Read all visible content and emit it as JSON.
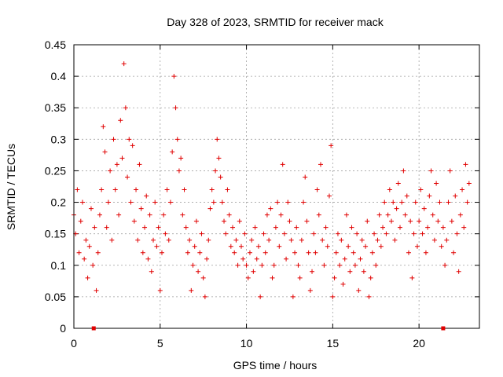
{
  "chart_data": {
    "type": "scatter",
    "title": "Day 328 of 2023, SRMTID for receiver mack",
    "xlabel": "GPS time / hours",
    "ylabel": "SRMTID / TECUs",
    "xlim": [
      0,
      23.5
    ],
    "ylim": [
      0,
      0.45
    ],
    "xticks": [
      0,
      5,
      10,
      15,
      20
    ],
    "xtick_labels": [
      "0",
      "5",
      "10",
      "15",
      "20"
    ],
    "yticks": [
      0,
      0.05,
      0.1,
      0.15,
      0.2,
      0.25,
      0.3,
      0.35,
      0.4,
      0.45
    ],
    "ytick_labels": [
      "0",
      "0.05",
      "0.1",
      "0.15",
      "0.2",
      "0.25",
      "0.3",
      "0.35",
      "0.4",
      "0.45"
    ],
    "grid": true,
    "series_color": "#e00000",
    "series": [
      {
        "name": "SRMTID",
        "marker": "plus",
        "points": [
          [
            0.0,
            0.18
          ],
          [
            0.1,
            0.15
          ],
          [
            0.2,
            0.22
          ],
          [
            0.3,
            0.12
          ],
          [
            0.4,
            0.17
          ],
          [
            0.5,
            0.2
          ],
          [
            0.6,
            0.11
          ],
          [
            0.7,
            0.14
          ],
          [
            0.8,
            0.08
          ],
          [
            0.9,
            0.13
          ],
          [
            1.0,
            0.19
          ],
          [
            1.1,
            0.1
          ],
          [
            1.2,
            0.16
          ],
          [
            1.3,
            0.06
          ],
          [
            1.4,
            0.12
          ],
          [
            1.5,
            0.18
          ],
          [
            1.6,
            0.22
          ],
          [
            1.7,
            0.32
          ],
          [
            1.8,
            0.28
          ],
          [
            1.9,
            0.16
          ],
          [
            2.0,
            0.2
          ],
          [
            2.1,
            0.25
          ],
          [
            2.2,
            0.14
          ],
          [
            2.3,
            0.3
          ],
          [
            2.4,
            0.22
          ],
          [
            2.5,
            0.26
          ],
          [
            2.6,
            0.18
          ],
          [
            2.7,
            0.33
          ],
          [
            2.8,
            0.27
          ],
          [
            2.9,
            0.42
          ],
          [
            3.0,
            0.35
          ],
          [
            3.1,
            0.24
          ],
          [
            3.2,
            0.3
          ],
          [
            3.3,
            0.2
          ],
          [
            3.4,
            0.29
          ],
          [
            3.5,
            0.17
          ],
          [
            3.6,
            0.22
          ],
          [
            3.7,
            0.14
          ],
          [
            3.8,
            0.26
          ],
          [
            3.9,
            0.19
          ],
          [
            4.0,
            0.12
          ],
          [
            4.1,
            0.16
          ],
          [
            4.2,
            0.21
          ],
          [
            4.3,
            0.11
          ],
          [
            4.4,
            0.18
          ],
          [
            4.5,
            0.09
          ],
          [
            4.6,
            0.14
          ],
          [
            4.7,
            0.2
          ],
          [
            4.8,
            0.13
          ],
          [
            4.9,
            0.16
          ],
          [
            5.0,
            0.06
          ],
          [
            5.1,
            0.12
          ],
          [
            5.2,
            0.18
          ],
          [
            5.3,
            0.15
          ],
          [
            5.4,
            0.22
          ],
          [
            5.5,
            0.14
          ],
          [
            5.6,
            0.2
          ],
          [
            5.7,
            0.28
          ],
          [
            5.8,
            0.4
          ],
          [
            5.9,
            0.35
          ],
          [
            6.0,
            0.3
          ],
          [
            6.1,
            0.25
          ],
          [
            6.2,
            0.27
          ],
          [
            6.3,
            0.18
          ],
          [
            6.4,
            0.22
          ],
          [
            6.5,
            0.16
          ],
          [
            6.6,
            0.12
          ],
          [
            6.7,
            0.14
          ],
          [
            6.8,
            0.06
          ],
          [
            6.9,
            0.1
          ],
          [
            7.0,
            0.13
          ],
          [
            7.1,
            0.17
          ],
          [
            7.2,
            0.09
          ],
          [
            7.3,
            0.12
          ],
          [
            7.4,
            0.15
          ],
          [
            7.5,
            0.08
          ],
          [
            7.6,
            0.05
          ],
          [
            7.7,
            0.11
          ],
          [
            7.8,
            0.14
          ],
          [
            7.9,
            0.19
          ],
          [
            8.0,
            0.22
          ],
          [
            8.1,
            0.2
          ],
          [
            8.2,
            0.25
          ],
          [
            8.3,
            0.3
          ],
          [
            8.4,
            0.27
          ],
          [
            8.5,
            0.24
          ],
          [
            8.6,
            0.2
          ],
          [
            8.7,
            0.17
          ],
          [
            8.8,
            0.15
          ],
          [
            8.9,
            0.22
          ],
          [
            9.0,
            0.18
          ],
          [
            9.1,
            0.13
          ],
          [
            9.2,
            0.16
          ],
          [
            9.3,
            0.12
          ],
          [
            9.4,
            0.14
          ],
          [
            9.5,
            0.1
          ],
          [
            9.6,
            0.17
          ],
          [
            9.7,
            0.13
          ],
          [
            9.8,
            0.11
          ],
          [
            9.9,
            0.15
          ],
          [
            10.0,
            0.1
          ],
          [
            10.1,
            0.08
          ],
          [
            10.2,
            0.12
          ],
          [
            10.3,
            0.14
          ],
          [
            10.4,
            0.09
          ],
          [
            10.5,
            0.16
          ],
          [
            10.6,
            0.11
          ],
          [
            10.7,
            0.13
          ],
          [
            10.8,
            0.05
          ],
          [
            10.9,
            0.1
          ],
          [
            11.0,
            0.15
          ],
          [
            11.1,
            0.12
          ],
          [
            11.2,
            0.18
          ],
          [
            11.3,
            0.14
          ],
          [
            11.4,
            0.19
          ],
          [
            11.5,
            0.08
          ],
          [
            11.6,
            0.1
          ],
          [
            11.7,
            0.16
          ],
          [
            11.8,
            0.2
          ],
          [
            11.9,
            0.13
          ],
          [
            12.0,
            0.18
          ],
          [
            12.1,
            0.26
          ],
          [
            12.2,
            0.15
          ],
          [
            12.3,
            0.11
          ],
          [
            12.4,
            0.2
          ],
          [
            12.5,
            0.17
          ],
          [
            12.6,
            0.14
          ],
          [
            12.7,
            0.05
          ],
          [
            12.8,
            0.12
          ],
          [
            12.9,
            0.16
          ],
          [
            13.0,
            0.1
          ],
          [
            13.1,
            0.08
          ],
          [
            13.2,
            0.14
          ],
          [
            13.3,
            0.2
          ],
          [
            13.4,
            0.24
          ],
          [
            13.5,
            0.17
          ],
          [
            13.6,
            0.12
          ],
          [
            13.7,
            0.06
          ],
          [
            13.8,
            0.09
          ],
          [
            13.9,
            0.15
          ],
          [
            14.0,
            0.12
          ],
          [
            14.1,
            0.22
          ],
          [
            14.2,
            0.18
          ],
          [
            14.3,
            0.26
          ],
          [
            14.4,
            0.14
          ],
          [
            14.5,
            0.1
          ],
          [
            14.6,
            0.16
          ],
          [
            14.7,
            0.13
          ],
          [
            14.8,
            0.21
          ],
          [
            14.9,
            0.29
          ],
          [
            15.0,
            0.05
          ],
          [
            15.1,
            0.08
          ],
          [
            15.2,
            0.12
          ],
          [
            15.3,
            0.15
          ],
          [
            15.4,
            0.1
          ],
          [
            15.5,
            0.14
          ],
          [
            15.6,
            0.07
          ],
          [
            15.7,
            0.11
          ],
          [
            15.8,
            0.18
          ],
          [
            15.9,
            0.13
          ],
          [
            16.0,
            0.09
          ],
          [
            16.1,
            0.16
          ],
          [
            16.2,
            0.12
          ],
          [
            16.3,
            0.1
          ],
          [
            16.4,
            0.15
          ],
          [
            16.5,
            0.06
          ],
          [
            16.6,
            0.11
          ],
          [
            16.7,
            0.14
          ],
          [
            16.8,
            0.09
          ],
          [
            16.9,
            0.13
          ],
          [
            17.0,
            0.17
          ],
          [
            17.1,
            0.05
          ],
          [
            17.2,
            0.08
          ],
          [
            17.3,
            0.12
          ],
          [
            17.4,
            0.15
          ],
          [
            17.5,
            0.1
          ],
          [
            17.6,
            0.14
          ],
          [
            17.7,
            0.18
          ],
          [
            17.8,
            0.13
          ],
          [
            17.9,
            0.16
          ],
          [
            18.0,
            0.2
          ],
          [
            18.1,
            0.15
          ],
          [
            18.2,
            0.18
          ],
          [
            18.3,
            0.22
          ],
          [
            18.4,
            0.17
          ],
          [
            18.5,
            0.2
          ],
          [
            18.6,
            0.14
          ],
          [
            18.7,
            0.19
          ],
          [
            18.8,
            0.23
          ],
          [
            18.9,
            0.16
          ],
          [
            19.0,
            0.2
          ],
          [
            19.1,
            0.25
          ],
          [
            19.2,
            0.18
          ],
          [
            19.3,
            0.21
          ],
          [
            19.4,
            0.12
          ],
          [
            19.5,
            0.17
          ],
          [
            19.6,
            0.08
          ],
          [
            19.7,
            0.15
          ],
          [
            19.8,
            0.2
          ],
          [
            19.9,
            0.13
          ],
          [
            20.0,
            0.17
          ],
          [
            20.1,
            0.22
          ],
          [
            20.2,
            0.15
          ],
          [
            20.3,
            0.19
          ],
          [
            20.4,
            0.12
          ],
          [
            20.5,
            0.16
          ],
          [
            20.6,
            0.21
          ],
          [
            20.7,
            0.25
          ],
          [
            20.8,
            0.18
          ],
          [
            20.9,
            0.14
          ],
          [
            21.0,
            0.23
          ],
          [
            21.1,
            0.17
          ],
          [
            21.2,
            0.2
          ],
          [
            21.3,
            0.13
          ],
          [
            21.4,
            0.16
          ],
          [
            21.5,
            0.1
          ],
          [
            21.6,
            0.14
          ],
          [
            21.7,
            0.2
          ],
          [
            21.8,
            0.25
          ],
          [
            21.9,
            0.17
          ],
          [
            22.0,
            0.12
          ],
          [
            22.1,
            0.21
          ],
          [
            22.2,
            0.15
          ],
          [
            22.3,
            0.09
          ],
          [
            22.4,
            0.18
          ],
          [
            22.5,
            0.22
          ],
          [
            22.6,
            0.16
          ],
          [
            22.7,
            0.26
          ],
          [
            22.8,
            0.2
          ],
          [
            22.9,
            0.23
          ]
        ]
      }
    ],
    "gap_markers_x": [
      1.15,
      21.4
    ]
  }
}
